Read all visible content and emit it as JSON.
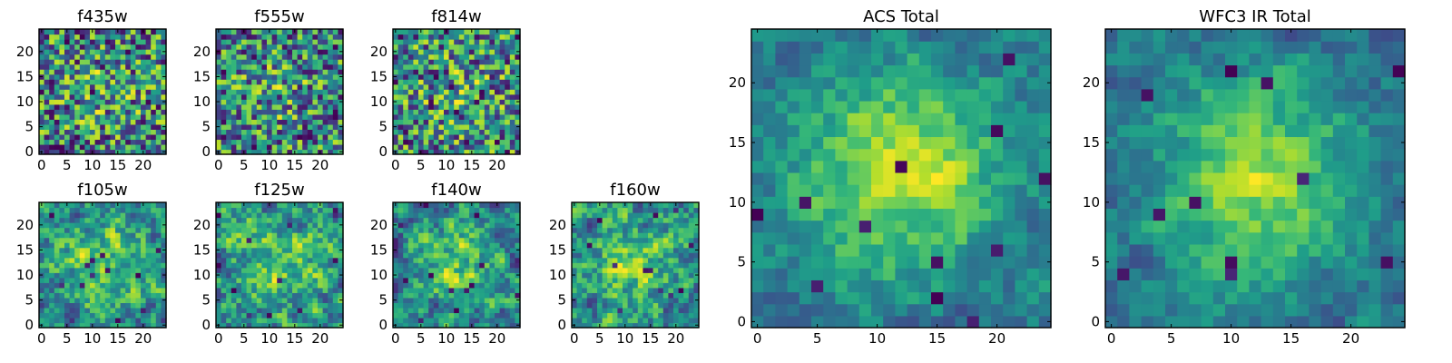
{
  "chart_data": [
    {
      "type": "heatmap",
      "title": "f435w",
      "grid_size": 25,
      "xticks": [
        0,
        5,
        10,
        15,
        20
      ],
      "yticks": [
        0,
        5,
        10,
        15,
        20
      ],
      "xlim": [
        -0.5,
        24.5
      ],
      "ylim": [
        -0.5,
        24.5
      ],
      "style": "noise"
    },
    {
      "type": "heatmap",
      "title": "f555w",
      "grid_size": 25,
      "xticks": [
        0,
        5,
        10,
        15,
        20
      ],
      "yticks": [
        0,
        5,
        10,
        15,
        20
      ],
      "xlim": [
        -0.5,
        24.5
      ],
      "ylim": [
        -0.5,
        24.5
      ],
      "style": "noise"
    },
    {
      "type": "heatmap",
      "title": "f814w",
      "grid_size": 25,
      "xticks": [
        0,
        5,
        10,
        15,
        20
      ],
      "yticks": [
        0,
        5,
        10,
        15,
        20
      ],
      "xlim": [
        -0.5,
        24.5
      ],
      "ylim": [
        -0.5,
        24.5
      ],
      "style": "noise"
    },
    {
      "type": "heatmap",
      "title": "f105w",
      "grid_size": 25,
      "xticks": [
        0,
        5,
        10,
        15,
        20
      ],
      "yticks": [
        0,
        5,
        10,
        15,
        20
      ],
      "xlim": [
        -0.5,
        24.5
      ],
      "ylim": [
        -0.5,
        24.5
      ],
      "style": "smooth"
    },
    {
      "type": "heatmap",
      "title": "f125w",
      "grid_size": 25,
      "xticks": [
        0,
        5,
        10,
        15,
        20
      ],
      "yticks": [
        0,
        5,
        10,
        15,
        20
      ],
      "xlim": [
        -0.5,
        24.5
      ],
      "ylim": [
        -0.5,
        24.5
      ],
      "style": "smooth"
    },
    {
      "type": "heatmap",
      "title": "f140w",
      "grid_size": 25,
      "xticks": [
        0,
        5,
        10,
        15,
        20
      ],
      "yticks": [
        0,
        5,
        10,
        15,
        20
      ],
      "xlim": [
        -0.5,
        24.5
      ],
      "ylim": [
        -0.5,
        24.5
      ],
      "style": "smooth"
    },
    {
      "type": "heatmap",
      "title": "f160w",
      "grid_size": 25,
      "xticks": [
        0,
        5,
        10,
        15,
        20
      ],
      "yticks": [
        0,
        5,
        10,
        15,
        20
      ],
      "xlim": [
        -0.5,
        24.5
      ],
      "ylim": [
        -0.5,
        24.5
      ],
      "style": "smooth"
    },
    {
      "type": "heatmap",
      "title": "ACS Total",
      "grid_size": 25,
      "xticks": [
        0,
        5,
        10,
        15,
        20
      ],
      "yticks": [
        0,
        5,
        10,
        15,
        20
      ],
      "xlim": [
        -0.5,
        24.5
      ],
      "ylim": [
        -0.5,
        24.5
      ],
      "style": "blob"
    },
    {
      "type": "heatmap",
      "title": "WFC3 IR Total",
      "grid_size": 25,
      "xticks": [
        0,
        5,
        10,
        15,
        20
      ],
      "yticks": [
        0,
        5,
        10,
        15,
        20
      ],
      "xlim": [
        -0.5,
        24.5
      ],
      "ylim": [
        -0.5,
        24.5
      ],
      "style": "blob"
    }
  ],
  "colormap": "viridis",
  "colors": {
    "low": "#440154",
    "mid": "#21918c",
    "high": "#fde725",
    "axis": "#000000"
  }
}
